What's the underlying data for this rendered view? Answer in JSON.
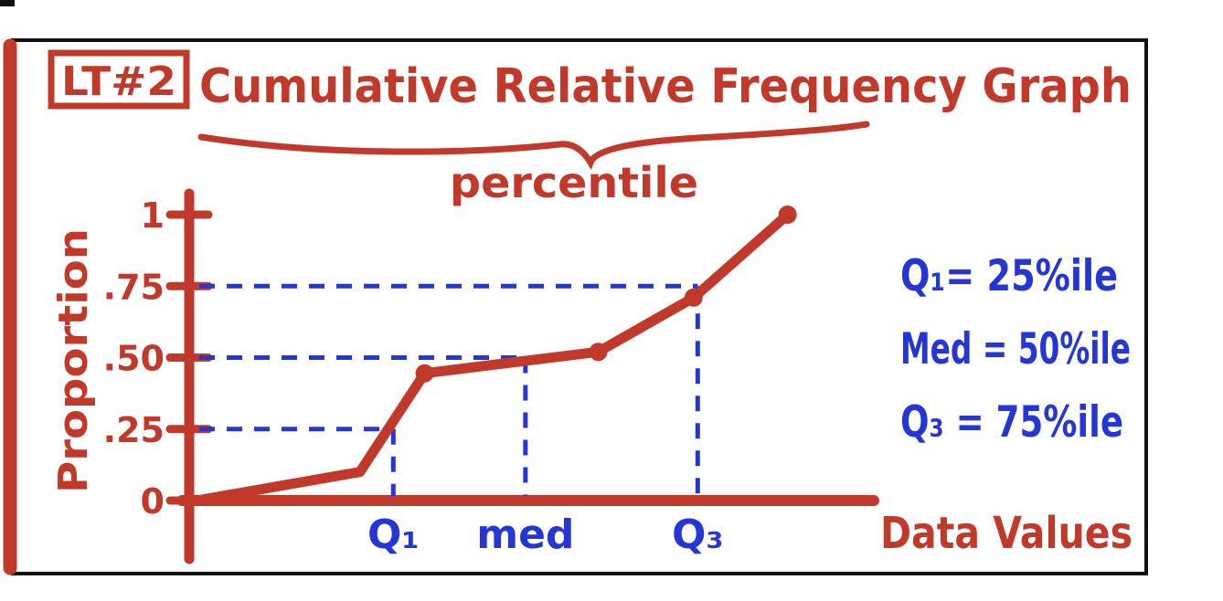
{
  "page": {
    "badge": "LT#2"
  },
  "colors": {
    "ink_red": "#c0392b",
    "ink_blue": "#2636d4",
    "border_black": "#111111",
    "background": "#ffffff"
  },
  "chart_data": {
    "type": "line",
    "title": "Cumulative Relative Frequency Graph",
    "subtitle": "percentile",
    "xlabel": "Data Values",
    "ylabel": "Proportion",
    "ylim": [
      0,
      1
    ],
    "grid": false,
    "legend": "none",
    "yticks": [
      {
        "value": 0,
        "label": "0"
      },
      {
        "value": 0.25,
        "label": ".25"
      },
      {
        "value": 0.5,
        "label": ".50"
      },
      {
        "value": 0.75,
        "label": ".75"
      },
      {
        "value": 1,
        "label": "1"
      }
    ],
    "curve": {
      "points": [
        [
          0,
          0
        ],
        [
          0.24,
          0.1
        ],
        [
          0.335,
          0.445
        ],
        [
          0.59,
          0.52
        ],
        [
          0.73,
          0.71
        ],
        [
          0.868,
          1.0
        ]
      ],
      "dot_indices": [
        2,
        3,
        4,
        5
      ]
    },
    "guides": [
      {
        "proportion": 0.25,
        "x": 0.289,
        "xlabel": "Q₁"
      },
      {
        "proportion": 0.5,
        "x": 0.483,
        "xlabel": "med"
      },
      {
        "proportion": 0.75,
        "x": 0.736,
        "xlabel": "Q₃"
      }
    ],
    "annotations": [
      "Q₁= 25%ile",
      "Med = 50%ile",
      "Q₃ = 75%ile"
    ]
  }
}
